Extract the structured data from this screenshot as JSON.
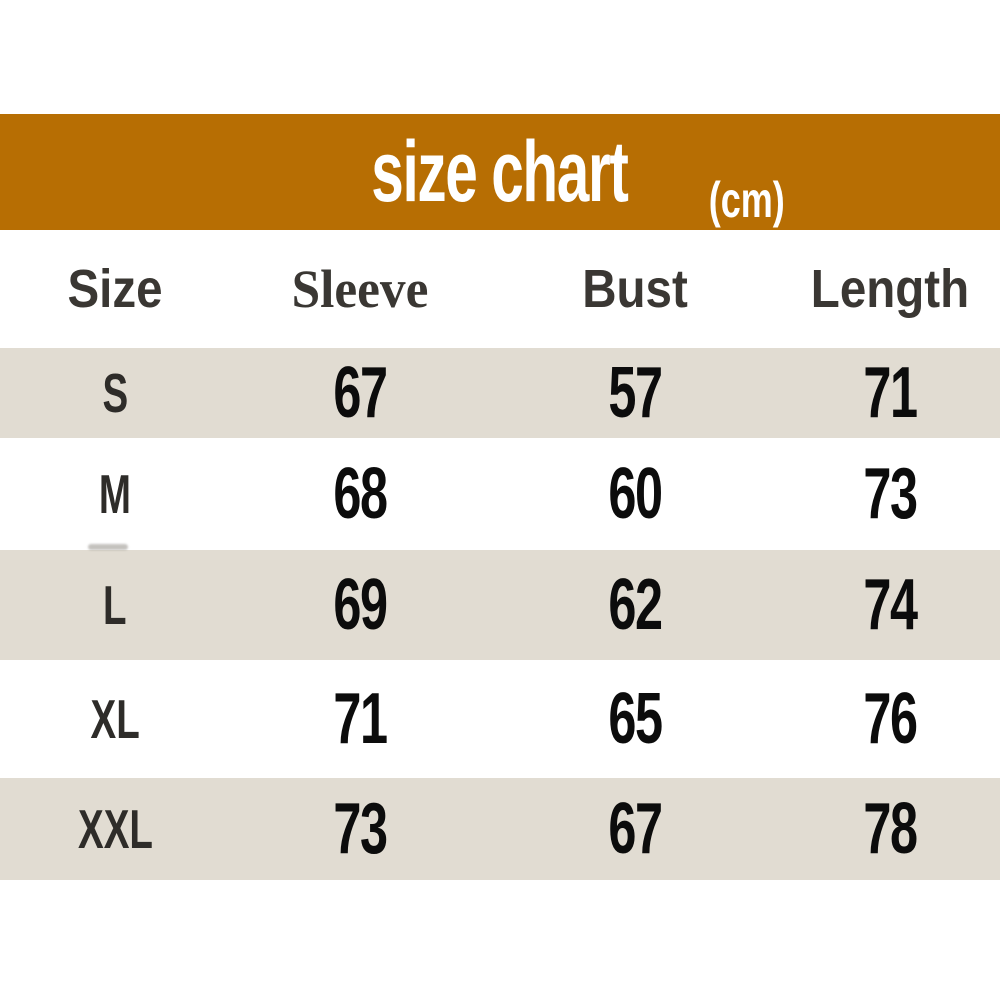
{
  "banner": {
    "title": "size chart",
    "unit": "(cm)",
    "bg_color": "#b76e03",
    "text_color": "#ffffff"
  },
  "table": {
    "headers": [
      "Size",
      "Sleeve",
      "Bust",
      "Length"
    ],
    "rows": [
      {
        "size": "S",
        "values": [
          "67",
          "57",
          "71"
        ]
      },
      {
        "size": "M",
        "values": [
          "68",
          "60",
          "73"
        ]
      },
      {
        "size": "L",
        "values": [
          "69",
          "62",
          "74"
        ]
      },
      {
        "size": "XL",
        "values": [
          "71",
          "65",
          "76"
        ]
      },
      {
        "size": "XXL",
        "values": [
          "73",
          "67",
          "78"
        ]
      }
    ],
    "stripe_color": "#e1dcd2",
    "header_text_color": "#3a3733",
    "value_text_color": "#0c0c0c"
  },
  "chart_data": {
    "type": "table",
    "title": "size chart (cm)",
    "units": "cm",
    "columns": [
      "Size",
      "Sleeve",
      "Bust",
      "Length"
    ],
    "rows": [
      [
        "S",
        67,
        57,
        71
      ],
      [
        "M",
        68,
        60,
        73
      ],
      [
        "L",
        69,
        62,
        74
      ],
      [
        "XL",
        71,
        65,
        76
      ],
      [
        "XXL",
        73,
        67,
        78
      ]
    ]
  }
}
